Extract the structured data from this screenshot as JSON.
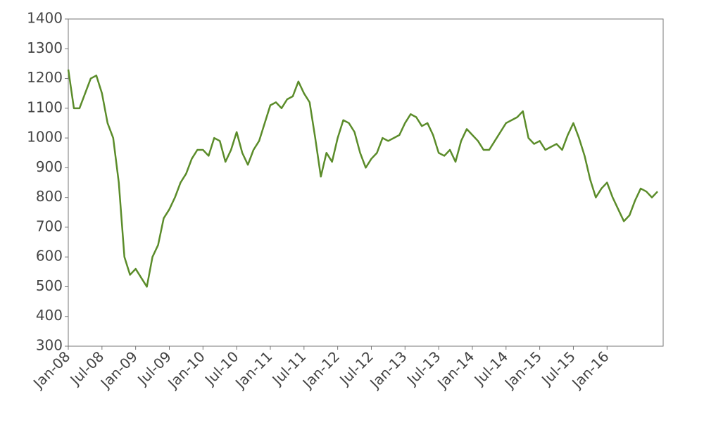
{
  "chart_data": {
    "type": "line",
    "x": [
      "2008-01",
      "2008-02",
      "2008-03",
      "2008-04",
      "2008-05",
      "2008-06",
      "2008-07",
      "2008-08",
      "2008-09",
      "2008-10",
      "2008-11",
      "2008-12",
      "2009-01",
      "2009-02",
      "2009-03",
      "2009-04",
      "2009-05",
      "2009-06",
      "2009-07",
      "2009-08",
      "2009-09",
      "2009-10",
      "2009-11",
      "2009-12",
      "2010-01",
      "2010-02",
      "2010-03",
      "2010-04",
      "2010-05",
      "2010-06",
      "2010-07",
      "2010-08",
      "2010-09",
      "2010-10",
      "2010-11",
      "2010-12",
      "2011-01",
      "2011-02",
      "2011-03",
      "2011-04",
      "2011-05",
      "2011-06",
      "2011-07",
      "2011-08",
      "2011-09",
      "2011-10",
      "2011-11",
      "2011-12",
      "2012-01",
      "2012-02",
      "2012-03",
      "2012-04",
      "2012-05",
      "2012-06",
      "2012-07",
      "2012-08",
      "2012-09",
      "2012-10",
      "2012-11",
      "2012-12",
      "2013-01",
      "2013-02",
      "2013-03",
      "2013-04",
      "2013-05",
      "2013-06",
      "2013-07",
      "2013-08",
      "2013-09",
      "2013-10",
      "2013-11",
      "2013-12",
      "2014-01",
      "2014-02",
      "2014-03",
      "2014-04",
      "2014-05",
      "2014-06",
      "2014-07",
      "2014-08",
      "2014-09",
      "2014-10",
      "2014-11",
      "2014-12",
      "2015-01",
      "2015-02",
      "2015-03",
      "2015-04",
      "2015-05",
      "2015-06",
      "2015-07",
      "2015-08",
      "2015-09",
      "2015-10",
      "2015-11",
      "2015-12",
      "2016-01",
      "2016-02",
      "2016-03",
      "2016-04",
      "2016-05",
      "2016-06",
      "2016-07",
      "2016-08",
      "2016-09",
      "2016-10"
    ],
    "series": [
      {
        "color": "#5b8c2a",
        "values": [
          1230,
          1100,
          1100,
          1150,
          1200,
          1210,
          1150,
          1050,
          1000,
          850,
          600,
          540,
          560,
          530,
          500,
          600,
          640,
          730,
          760,
          800,
          850,
          880,
          930,
          960,
          960,
          940,
          1000,
          990,
          920,
          960,
          1020,
          950,
          910,
          960,
          990,
          1050,
          1110,
          1120,
          1100,
          1130,
          1140,
          1190,
          1150,
          1120,
          1000,
          870,
          950,
          920,
          1000,
          1060,
          1050,
          1020,
          950,
          900,
          930,
          950,
          1000,
          990,
          1000,
          1010,
          1050,
          1080,
          1070,
          1040,
          1050,
          1010,
          950,
          940,
          960,
          920,
          990,
          1030,
          1010,
          990,
          960,
          960,
          990,
          1020,
          1050,
          1060,
          1070,
          1090,
          1000,
          980,
          990,
          960,
          970,
          980,
          960,
          1010,
          1050,
          1000,
          940,
          860,
          800,
          830,
          850,
          800,
          760,
          720,
          740,
          790,
          830,
          820,
          800,
          820
        ]
      }
    ],
    "xlim": [
      "2008-01",
      "2016-11"
    ],
    "xticks": [
      {
        "value": "2008-01",
        "label": "Jan-08"
      },
      {
        "value": "2008-07",
        "label": "Jul-08"
      },
      {
        "value": "2009-01",
        "label": "Jan-09"
      },
      {
        "value": "2009-07",
        "label": "Jul-09"
      },
      {
        "value": "2010-01",
        "label": "Jan-10"
      },
      {
        "value": "2010-07",
        "label": "Jul-10"
      },
      {
        "value": "2011-01",
        "label": "Jan-11"
      },
      {
        "value": "2011-07",
        "label": "Jul-11"
      },
      {
        "value": "2012-01",
        "label": "Jan-12"
      },
      {
        "value": "2012-07",
        "label": "Jul-12"
      },
      {
        "value": "2013-01",
        "label": "Jan-13"
      },
      {
        "value": "2013-07",
        "label": "Jul-13"
      },
      {
        "value": "2014-01",
        "label": "Jan-14"
      },
      {
        "value": "2014-07",
        "label": "Jul-14"
      },
      {
        "value": "2015-01",
        "label": "Jan-15"
      },
      {
        "value": "2015-07",
        "label": "Jul-15"
      },
      {
        "value": "2016-01",
        "label": "Jan-16"
      }
    ],
    "ylim": [
      300,
      1400
    ],
    "yticks": [
      300,
      400,
      500,
      600,
      700,
      800,
      900,
      1000,
      1100,
      1200,
      1300,
      1400
    ]
  }
}
